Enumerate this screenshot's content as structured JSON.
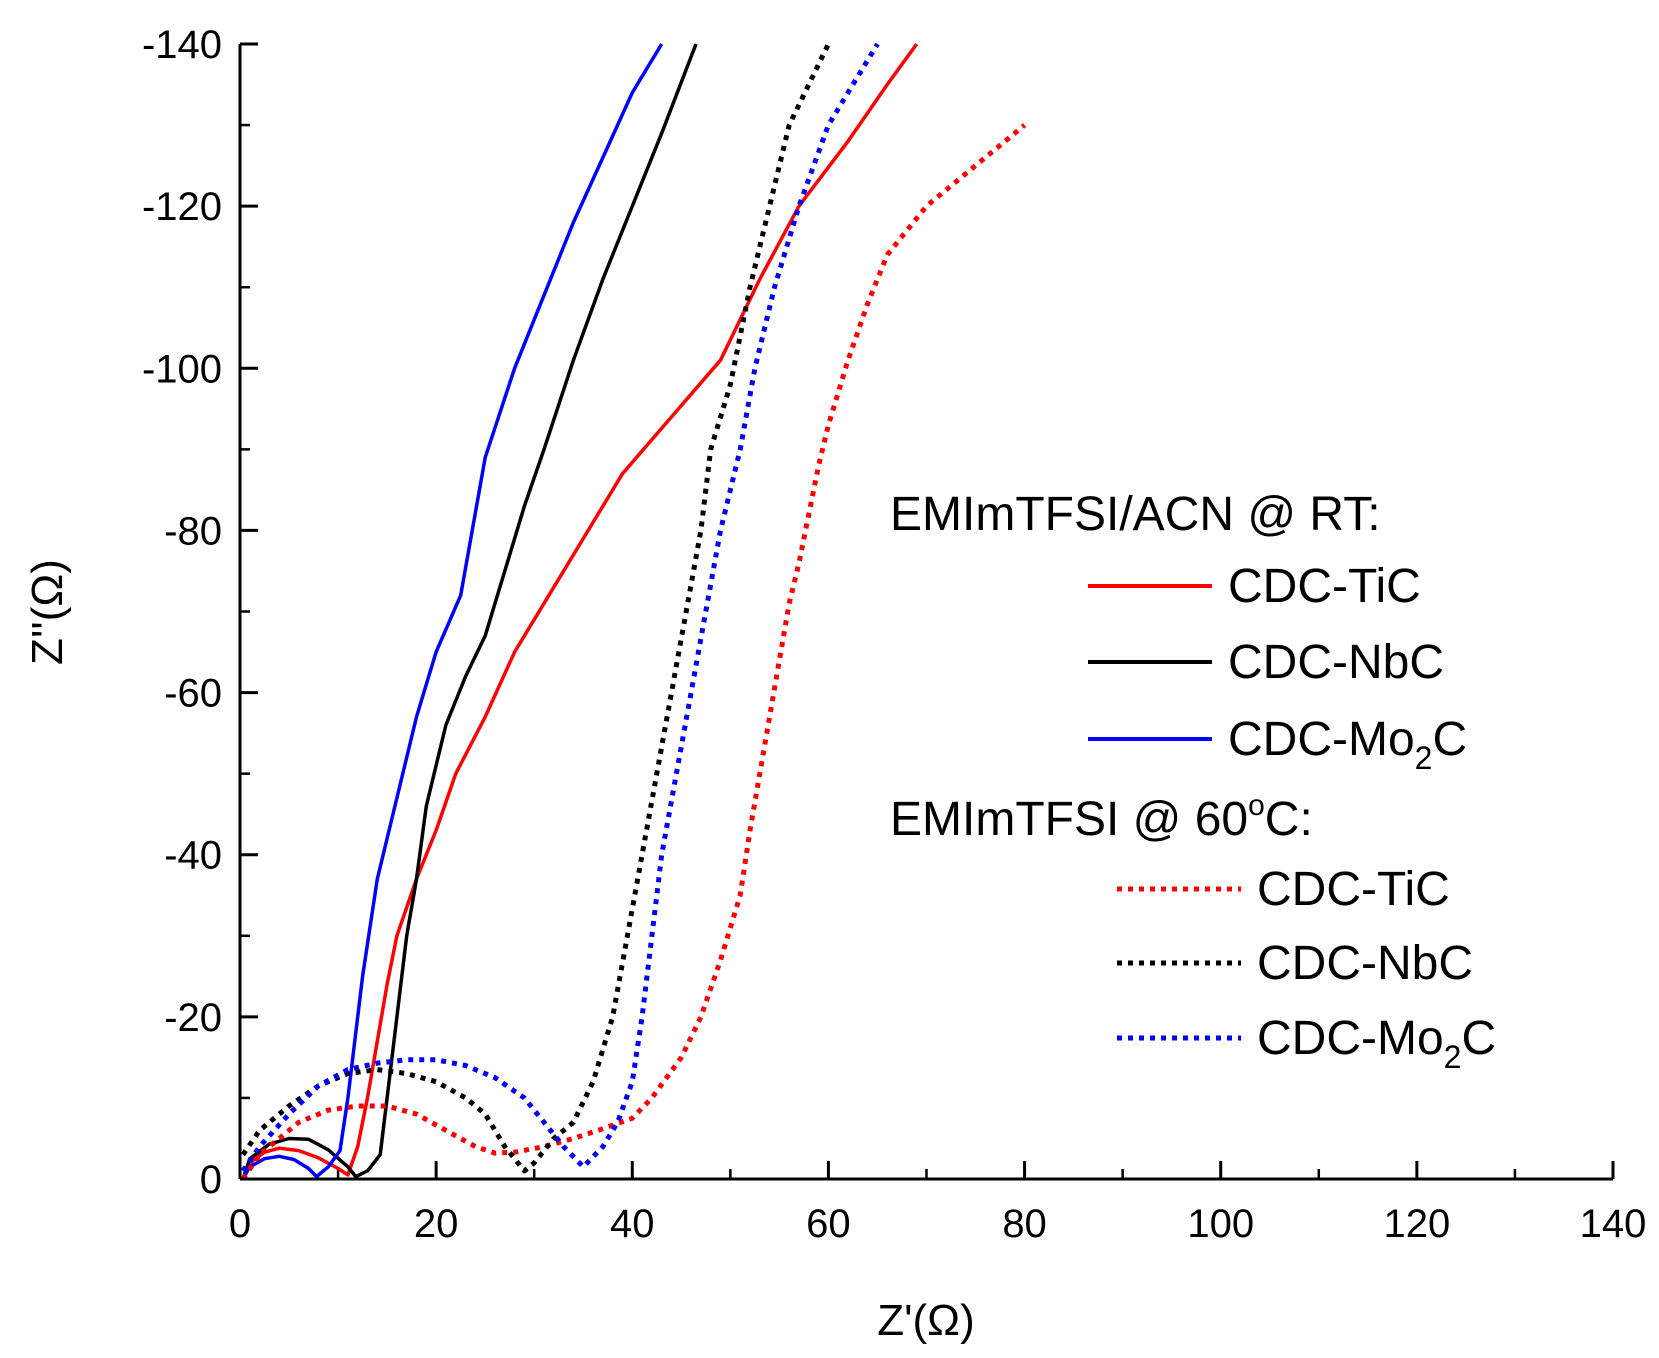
{
  "chart_data": {
    "type": "line",
    "xlabel": "Z'(Ω)",
    "ylabel": "Z''(Ω)",
    "xlim": [
      0,
      140
    ],
    "ylim": [
      0,
      -140
    ],
    "x_ticks": [
      0,
      20,
      40,
      60,
      80,
      100,
      120,
      140
    ],
    "y_ticks": [
      0,
      -20,
      -40,
      -60,
      -80,
      -100,
      -120,
      -140
    ],
    "x_tick_labels": [
      "0",
      "20",
      "40",
      "60",
      "80",
      "100",
      "120",
      "140"
    ],
    "y_tick_labels": [
      "0",
      "-20",
      "-40",
      "-60",
      "-80",
      "-100",
      "-120",
      "-140"
    ],
    "grid": false,
    "legend_position": "right",
    "legend": {
      "groups": [
        {
          "title": "EMImTFSI/ACN @ RT:",
          "entries": [
            {
              "series": 0,
              "label_main": "CDC-TiC",
              "label_sub": ""
            },
            {
              "series": 1,
              "label_main": "CDC-NbC",
              "label_sub": ""
            },
            {
              "series": 2,
              "label_main": "CDC-Mo",
              "label_sub": "2",
              "label_tail": "C"
            }
          ]
        },
        {
          "title_main": "EMImTFSI @ 60",
          "title_sup": "o",
          "title_tail": "C:",
          "entries": [
            {
              "series": 3,
              "label_main": "CDC-TiC",
              "label_sub": ""
            },
            {
              "series": 4,
              "label_main": "CDC-NbC",
              "label_sub": ""
            },
            {
              "series": 5,
              "label_main": "CDC-Mo",
              "label_sub": "2",
              "label_tail": "C"
            }
          ]
        }
      ]
    },
    "series": [
      {
        "name": "CDC-TiC",
        "group": "EMImTFSI/ACN @ RT",
        "color": "#ff0000",
        "style": "solid",
        "points": [
          [
            0.3,
            0
          ],
          [
            1,
            -2
          ],
          [
            2.5,
            -3.3
          ],
          [
            4,
            -3.8
          ],
          [
            6,
            -3.5
          ],
          [
            8,
            -2.6
          ],
          [
            10,
            -1.3
          ],
          [
            11,
            -0.5
          ],
          [
            12,
            -4
          ],
          [
            13,
            -10
          ],
          [
            14,
            -17
          ],
          [
            15,
            -24
          ],
          [
            16,
            -30
          ],
          [
            18,
            -37
          ],
          [
            20,
            -43
          ],
          [
            22,
            -50
          ],
          [
            25,
            -57
          ],
          [
            28,
            -65
          ],
          [
            32,
            -73
          ],
          [
            35,
            -79
          ],
          [
            39,
            -87
          ],
          [
            44,
            -94
          ],
          [
            49,
            -101
          ],
          [
            53,
            -111
          ],
          [
            57,
            -120
          ],
          [
            62,
            -128
          ],
          [
            66,
            -135
          ],
          [
            69,
            -140
          ]
        ]
      },
      {
        "name": "CDC-NbC",
        "group": "EMImTFSI/ACN @ RT",
        "color": "#000000",
        "style": "solid",
        "points": [
          [
            0.3,
            0
          ],
          [
            1,
            -2.5
          ],
          [
            3,
            -4.3
          ],
          [
            5,
            -5
          ],
          [
            7,
            -4.9
          ],
          [
            9,
            -3.6
          ],
          [
            11,
            -1.5
          ],
          [
            11.8,
            -0.3
          ],
          [
            13,
            -1
          ],
          [
            14.3,
            -3
          ],
          [
            15,
            -10
          ],
          [
            16,
            -20
          ],
          [
            17,
            -30
          ],
          [
            18,
            -37
          ],
          [
            19,
            -46
          ],
          [
            21,
            -56
          ],
          [
            23,
            -62
          ],
          [
            25,
            -67
          ],
          [
            27,
            -75
          ],
          [
            29,
            -83
          ],
          [
            31,
            -90
          ],
          [
            34,
            -101
          ],
          [
            37,
            -111
          ],
          [
            40,
            -120
          ],
          [
            43,
            -129
          ],
          [
            46.5,
            -140
          ]
        ]
      },
      {
        "name": "CDC-Mo2C",
        "group": "EMImTFSI/ACN @ RT",
        "color": "#0000ff",
        "style": "solid",
        "points": [
          [
            0.3,
            0
          ],
          [
            1,
            -1.5
          ],
          [
            2.5,
            -2.5
          ],
          [
            4,
            -2.8
          ],
          [
            5.5,
            -2.4
          ],
          [
            7,
            -1.3
          ],
          [
            7.8,
            -0.3
          ],
          [
            9,
            -1.5
          ],
          [
            10.2,
            -3.5
          ],
          [
            11,
            -10
          ],
          [
            11.5,
            -15
          ],
          [
            12.5,
            -25
          ],
          [
            14,
            -37
          ],
          [
            16,
            -47
          ],
          [
            18,
            -57
          ],
          [
            20,
            -65
          ],
          [
            22.5,
            -72
          ],
          [
            25,
            -89
          ],
          [
            28,
            -100
          ],
          [
            31,
            -109
          ],
          [
            34,
            -118
          ],
          [
            37,
            -126
          ],
          [
            40,
            -134
          ],
          [
            43,
            -140
          ]
        ]
      },
      {
        "name": "CDC-TiC",
        "group": "EMImTFSI @ 60°C",
        "color": "#ff0000",
        "style": "dotted",
        "points": [
          [
            0.3,
            0
          ],
          [
            2,
            -3
          ],
          [
            4,
            -5
          ],
          [
            6,
            -7
          ],
          [
            9,
            -8.5
          ],
          [
            12,
            -9
          ],
          [
            15,
            -9
          ],
          [
            18,
            -8
          ],
          [
            21,
            -6
          ],
          [
            24,
            -4
          ],
          [
            26,
            -3.2
          ],
          [
            28,
            -3.3
          ],
          [
            31,
            -4
          ],
          [
            34,
            -5
          ],
          [
            37,
            -6.2
          ],
          [
            40,
            -7.5
          ],
          [
            42,
            -10
          ],
          [
            45,
            -15
          ],
          [
            47,
            -20
          ],
          [
            49,
            -27
          ],
          [
            51,
            -35
          ],
          [
            52,
            -43
          ],
          [
            53,
            -50
          ],
          [
            54,
            -57
          ],
          [
            55,
            -64
          ],
          [
            56,
            -71
          ],
          [
            57,
            -76
          ],
          [
            58,
            -82
          ],
          [
            59,
            -88
          ],
          [
            60,
            -93
          ],
          [
            62,
            -101
          ],
          [
            64,
            -108
          ],
          [
            66,
            -114
          ],
          [
            70,
            -120
          ],
          [
            75,
            -125
          ],
          [
            80,
            -130
          ]
        ]
      },
      {
        "name": "CDC-NbC",
        "group": "EMImTFSI @ 60°C",
        "color": "#000000",
        "style": "dotted",
        "points": [
          [
            0.3,
            -3
          ],
          [
            2,
            -6
          ],
          [
            5,
            -9
          ],
          [
            8,
            -11.5
          ],
          [
            11,
            -13
          ],
          [
            14,
            -13.5
          ],
          [
            17,
            -13
          ],
          [
            20,
            -12
          ],
          [
            23,
            -10
          ],
          [
            25,
            -8
          ],
          [
            27,
            -4
          ],
          [
            29,
            -1
          ],
          [
            30,
            -2
          ],
          [
            32,
            -5
          ],
          [
            34,
            -7
          ],
          [
            36,
            -12
          ],
          [
            38,
            -20
          ],
          [
            39.5,
            -30
          ],
          [
            41,
            -40
          ],
          [
            42.5,
            -50
          ],
          [
            44,
            -60
          ],
          [
            45.5,
            -70
          ],
          [
            47,
            -80
          ],
          [
            48,
            -90
          ],
          [
            50,
            -98
          ],
          [
            52,
            -110
          ],
          [
            54,
            -120
          ],
          [
            56,
            -130
          ],
          [
            60,
            -140
          ]
        ]
      },
      {
        "name": "CDC-Mo2C",
        "group": "EMImTFSI @ 60°C",
        "color": "#0000ff",
        "style": "dotted",
        "points": [
          [
            0.3,
            -1
          ],
          [
            2,
            -4
          ],
          [
            5,
            -8
          ],
          [
            8,
            -11.5
          ],
          [
            11,
            -13.5
          ],
          [
            14,
            -14.3
          ],
          [
            17,
            -14.7
          ],
          [
            20,
            -14.7
          ],
          [
            23,
            -14
          ],
          [
            26,
            -12.5
          ],
          [
            29,
            -10
          ],
          [
            31,
            -7
          ],
          [
            33,
            -4
          ],
          [
            35,
            -1.5
          ],
          [
            37,
            -4
          ],
          [
            38.5,
            -7
          ],
          [
            40,
            -12
          ],
          [
            41,
            -20
          ],
          [
            42,
            -30
          ],
          [
            43,
            -40
          ],
          [
            44.5,
            -50
          ],
          [
            46,
            -60
          ],
          [
            47.5,
            -70
          ],
          [
            49,
            -80
          ],
          [
            51,
            -90
          ],
          [
            52.5,
            -100
          ],
          [
            54.5,
            -110
          ],
          [
            57,
            -120
          ],
          [
            60,
            -130
          ],
          [
            62.5,
            -135
          ],
          [
            65,
            -140
          ]
        ]
      }
    ]
  }
}
